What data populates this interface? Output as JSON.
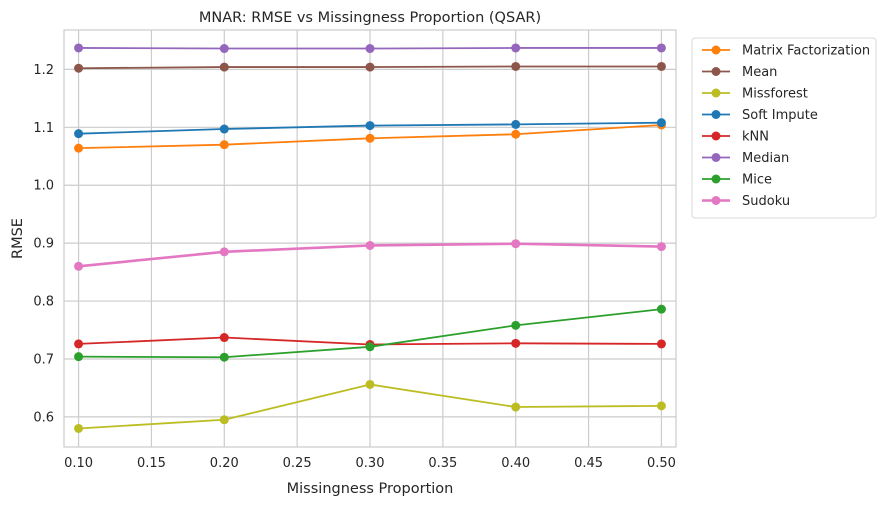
{
  "chart_data": {
    "type": "line",
    "title": "MNAR: RMSE vs Missingness Proportion (QSAR)",
    "xlabel": "Missingness Proportion",
    "ylabel": "RMSE",
    "xlim": [
      0.09,
      0.51
    ],
    "ylim": [
      0.548,
      1.268
    ],
    "xticks": [
      "0.10",
      "0.15",
      "0.20",
      "0.25",
      "0.30",
      "0.35",
      "0.40",
      "0.45",
      "0.50"
    ],
    "yticks": [
      "0.6",
      "0.7",
      "0.8",
      "0.9",
      "1.0",
      "1.1",
      "1.2"
    ],
    "grid": true,
    "legend_position": "outside-right",
    "x": [
      0.1,
      0.2,
      0.3,
      0.4,
      0.5
    ],
    "series": [
      {
        "name": "Matrix Factorization",
        "color": "#ff7f0e",
        "values": [
          1.064,
          1.07,
          1.081,
          1.088,
          1.104
        ]
      },
      {
        "name": "Mean",
        "color": "#8c564b",
        "values": [
          1.202,
          1.204,
          1.204,
          1.205,
          1.205
        ]
      },
      {
        "name": "Missforest",
        "color": "#bcbd22",
        "values": [
          0.58,
          0.595,
          0.656,
          0.617,
          0.619
        ]
      },
      {
        "name": "Soft Impute",
        "color": "#1f77b4",
        "values": [
          1.089,
          1.097,
          1.103,
          1.105,
          1.108
        ]
      },
      {
        "name": "kNN",
        "color": "#d62728",
        "values": [
          0.726,
          0.737,
          0.725,
          0.727,
          0.726
        ]
      },
      {
        "name": "Median",
        "color": "#9467bd",
        "values": [
          1.237,
          1.236,
          1.236,
          1.237,
          1.237
        ]
      },
      {
        "name": "Mice",
        "color": "#2ca02c",
        "values": [
          0.704,
          0.703,
          0.721,
          0.758,
          0.786
        ]
      },
      {
        "name": "Sudoku",
        "color": "#e377c2",
        "values": [
          0.86,
          0.885,
          0.896,
          0.899,
          0.894
        ]
      }
    ]
  }
}
